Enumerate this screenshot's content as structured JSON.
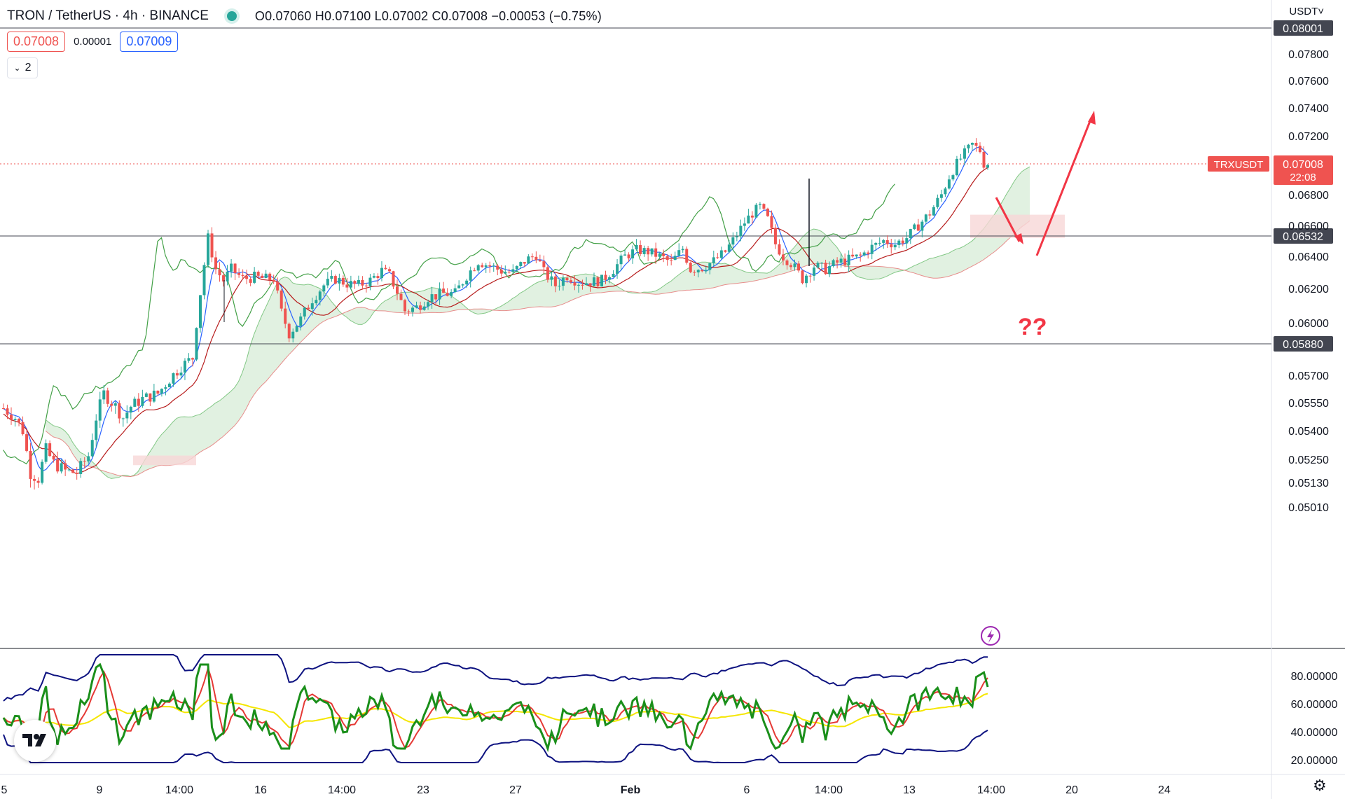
{
  "header": {
    "symbol": "TRON / TetherUS · 4h · BINANCE",
    "ohlc": "O0.07060  H0.07100  L0.07002  C0.07008  −0.00053  (−0.75%)",
    "bid": "0.07008",
    "spread": "0.00001",
    "ask": "0.07009",
    "indicators_collapsed_count": "2",
    "collapse_icon": "chevron-down-icon"
  },
  "currency": "USDT˅",
  "colors": {
    "up": "#26a69a",
    "down": "#ef5350",
    "conversion": "#2962ff",
    "base": "#b71c1c",
    "lagging": "#43a047",
    "cloud_bull": "#c8e6c9",
    "cloud_bear": "#f8d7d7",
    "rsi": "#1a8f1a",
    "bands": "#0d1280",
    "signal": "#e53935",
    "midline": "#f5e600",
    "arrow": "#f23645",
    "hline": "#131722"
  },
  "chart_data": {
    "type": "candlestick",
    "symbol_tag": "TRXUSDT",
    "last_price": "0.07008",
    "countdown": "22:08",
    "y_ticks": [
      "0.07800",
      "0.07600",
      "0.07400",
      "0.07200",
      "0.06800",
      "0.06600",
      "0.06400",
      "0.06200",
      "0.06000",
      "0.05700",
      "0.05550",
      "0.05400",
      "0.05250",
      "0.05130",
      "0.05010"
    ],
    "x_ticks": [
      "5",
      "9",
      "14:00",
      "16",
      "14:00",
      "23",
      "27",
      "Feb",
      "6",
      "14:00",
      "13",
      "14:00",
      "20",
      "24"
    ],
    "horizontal_levels": [
      {
        "label": "0.08001",
        "price": 0.08001
      },
      {
        "label": "0.06532",
        "price": 0.06532
      },
      {
        "label": "0.05880",
        "price": 0.0588
      }
    ],
    "annotation": "??",
    "price_path": [
      [
        0,
        0.0552
      ],
      [
        6,
        0.0547
      ],
      [
        10,
        0.054
      ],
      [
        14,
        0.0518
      ],
      [
        18,
        0.0515
      ],
      [
        22,
        0.053
      ],
      [
        26,
        0.0523
      ],
      [
        32,
        0.0519
      ],
      [
        38,
        0.0518
      ],
      [
        44,
        0.0527
      ],
      [
        48,
        0.0547
      ],
      [
        52,
        0.056
      ],
      [
        58,
        0.0553
      ],
      [
        62,
        0.0547
      ],
      [
        66,
        0.0553
      ],
      [
        72,
        0.0557
      ],
      [
        80,
        0.056
      ],
      [
        86,
        0.0568
      ],
      [
        92,
        0.0575
      ],
      [
        98,
        0.058
      ],
      [
        100,
        0.06
      ],
      [
        104,
        0.0635
      ],
      [
        106,
        0.0652
      ],
      [
        110,
        0.0632
      ],
      [
        114,
        0.0625
      ],
      [
        118,
        0.0632
      ],
      [
        124,
        0.0626
      ],
      [
        130,
        0.0627
      ],
      [
        136,
        0.0626
      ],
      [
        140,
        0.0626
      ],
      [
        144,
        0.0606
      ],
      [
        148,
        0.0594
      ],
      [
        154,
        0.0602
      ],
      [
        160,
        0.0614
      ],
      [
        166,
        0.0622
      ],
      [
        172,
        0.0626
      ],
      [
        178,
        0.0623
      ],
      [
        184,
        0.0622
      ],
      [
        190,
        0.0625
      ],
      [
        196,
        0.0631
      ],
      [
        200,
        0.0628
      ],
      [
        204,
        0.0618
      ],
      [
        208,
        0.0607
      ],
      [
        214,
        0.0609
      ],
      [
        220,
        0.0615
      ],
      [
        228,
        0.0617
      ],
      [
        234,
        0.0617
      ],
      [
        240,
        0.0628
      ],
      [
        246,
        0.0637
      ],
      [
        252,
        0.0634
      ],
      [
        258,
        0.0631
      ],
      [
        264,
        0.063
      ],
      [
        270,
        0.0637
      ],
      [
        276,
        0.0641
      ],
      [
        280,
        0.063
      ],
      [
        286,
        0.0622
      ],
      [
        292,
        0.0628
      ],
      [
        298,
        0.0624
      ],
      [
        304,
        0.0624
      ],
      [
        310,
        0.0625
      ],
      [
        316,
        0.0632
      ],
      [
        322,
        0.064
      ],
      [
        328,
        0.0644
      ],
      [
        334,
        0.0643
      ],
      [
        340,
        0.064
      ],
      [
        346,
        0.0636
      ],
      [
        352,
        0.0645
      ],
      [
        356,
        0.0632
      ],
      [
        362,
        0.0633
      ],
      [
        368,
        0.0637
      ],
      [
        374,
        0.0643
      ],
      [
        380,
        0.0654
      ],
      [
        384,
        0.0662
      ],
      [
        388,
        0.0668
      ],
      [
        392,
        0.0672
      ],
      [
        396,
        0.0664
      ],
      [
        400,
        0.0648
      ],
      [
        404,
        0.064
      ],
      [
        408,
        0.0636
      ],
      [
        414,
        0.0626
      ],
      [
        420,
        0.0634
      ],
      [
        426,
        0.0632
      ],
      [
        432,
        0.0636
      ],
      [
        438,
        0.0638
      ],
      [
        444,
        0.064
      ],
      [
        450,
        0.0646
      ],
      [
        456,
        0.065
      ],
      [
        462,
        0.0648
      ],
      [
        468,
        0.0652
      ],
      [
        474,
        0.066
      ],
      [
        480,
        0.0668
      ],
      [
        486,
        0.068
      ],
      [
        490,
        0.0692
      ],
      [
        494,
        0.0701
      ],
      [
        498,
        0.0708
      ],
      [
        502,
        0.0714
      ],
      [
        506,
        0.071
      ],
      [
        508,
        0.0701
      ]
    ],
    "rsi_axis_ticks": [
      "80.00000",
      "60.00000",
      "40.00000",
      "20.00000"
    ]
  }
}
